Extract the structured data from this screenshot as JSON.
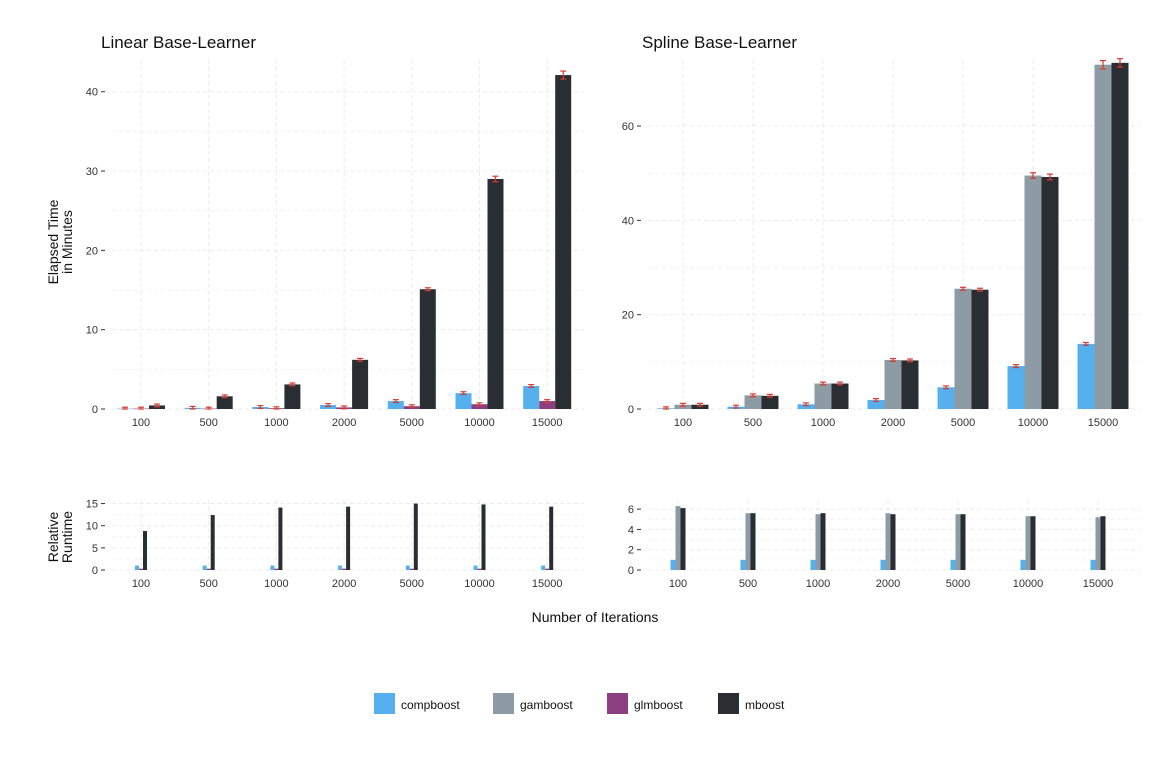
{
  "figure": {
    "xlabel": "Number of Iterations",
    "ylabel_top": [
      "Elapsed Time",
      "in Minutes"
    ],
    "ylabel_bottom": [
      "Relative",
      "Runtime"
    ]
  },
  "legend": {
    "position": "bottom",
    "entries": [
      {
        "name": "compboost",
        "color": "#56B0EE"
      },
      {
        "name": "gamboost",
        "color": "#8C9BA4"
      },
      {
        "name": "glmboost",
        "color": "#8B3F80"
      },
      {
        "name": "mboost",
        "color": "#2A2E33"
      }
    ]
  },
  "colors": {
    "error_bar": "#D93A2B",
    "grid": "#EBEBEB"
  },
  "chart_data": [
    {
      "type": "bar",
      "title": "Linear Base-Learner",
      "xlabel": "Number of Iterations",
      "ylabel": "Elapsed Time in Minutes",
      "categories": [
        "100",
        "500",
        "1000",
        "2000",
        "5000",
        "10000",
        "15000"
      ],
      "ylim": [
        0,
        44
      ],
      "yticks": [
        0,
        10,
        20,
        30,
        40
      ],
      "grid": true,
      "error_bars": true,
      "series": [
        {
          "name": "compboost",
          "values": [
            0.05,
            0.15,
            0.25,
            0.5,
            1.0,
            2.0,
            2.9
          ]
        },
        {
          "name": "glmboost",
          "values": [
            0.05,
            0.05,
            0.1,
            0.2,
            0.35,
            0.6,
            1.0
          ]
        },
        {
          "name": "mboost",
          "values": [
            0.45,
            1.6,
            3.1,
            6.2,
            15.1,
            29.0,
            42.1
          ]
        }
      ]
    },
    {
      "type": "bar",
      "title": "Spline Base-Learner",
      "xlabel": "Number of Iterations",
      "ylabel": "Elapsed Time in Minutes",
      "categories": [
        "100",
        "500",
        "1000",
        "2000",
        "5000",
        "10000",
        "15000"
      ],
      "ylim": [
        0,
        74
      ],
      "yticks": [
        0,
        20,
        40,
        60
      ],
      "grid": true,
      "error_bars": true,
      "series": [
        {
          "name": "compboost",
          "values": [
            0.15,
            0.5,
            1.0,
            1.9,
            4.6,
            9.1,
            13.8
          ]
        },
        {
          "name": "gamboost",
          "values": [
            0.9,
            2.9,
            5.4,
            10.4,
            25.5,
            49.5,
            73.0
          ]
        },
        {
          "name": "mboost",
          "values": [
            0.9,
            2.8,
            5.4,
            10.3,
            25.3,
            49.2,
            73.4
          ]
        }
      ]
    },
    {
      "type": "bar",
      "title": "",
      "xlabel": "Number of Iterations",
      "ylabel": "Relative Runtime",
      "categories": [
        "100",
        "500",
        "1000",
        "2000",
        "5000",
        "10000",
        "15000"
      ],
      "ylim": [
        0,
        15.8
      ],
      "yticks": [
        0,
        5,
        10,
        15
      ],
      "grid": true,
      "series": [
        {
          "name": "compboost",
          "values": [
            1,
            1,
            1,
            1,
            1,
            1,
            1
          ]
        },
        {
          "name": "glmboost",
          "values": [
            0.3,
            0.3,
            0.3,
            0.3,
            0.3,
            0.3,
            0.3
          ]
        },
        {
          "name": "mboost",
          "values": [
            8.8,
            12.4,
            14.1,
            14.3,
            15.0,
            14.8,
            14.3
          ]
        }
      ]
    },
    {
      "type": "bar",
      "title": "",
      "xlabel": "Number of Iterations",
      "ylabel": "Relative Runtime",
      "categories": [
        "100",
        "500",
        "1000",
        "2000",
        "5000",
        "10000",
        "15000"
      ],
      "ylim": [
        0,
        6.9
      ],
      "yticks": [
        0,
        2,
        4,
        6
      ],
      "grid": true,
      "series": [
        {
          "name": "compboost",
          "values": [
            1,
            1,
            1,
            1,
            1,
            1,
            1
          ]
        },
        {
          "name": "gamboost",
          "values": [
            6.3,
            5.6,
            5.5,
            5.6,
            5.5,
            5.3,
            5.2
          ]
        },
        {
          "name": "mboost",
          "values": [
            6.1,
            5.6,
            5.6,
            5.5,
            5.5,
            5.3,
            5.3
          ]
        }
      ]
    }
  ]
}
